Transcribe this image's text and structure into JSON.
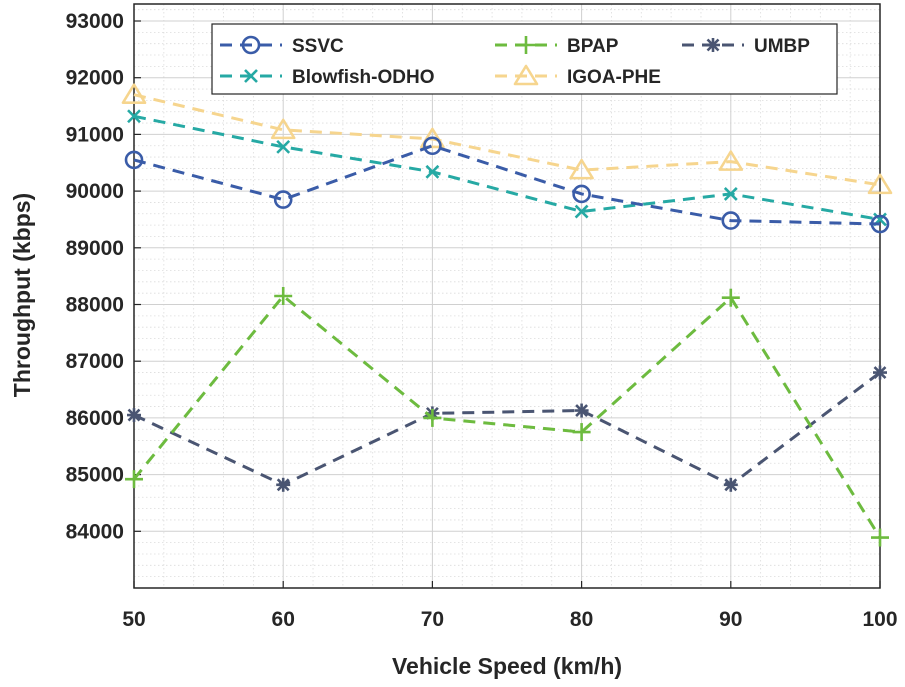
{
  "chart_data": {
    "type": "line",
    "title": "",
    "xlabel": "Vehicle Speed (km/h)",
    "ylabel": "Throughput (kbps)",
    "x": [
      50,
      60,
      70,
      80,
      90,
      100
    ],
    "x_ticks": [
      "50",
      "60",
      "70",
      "80",
      "90",
      "100"
    ],
    "xlim": [
      50,
      100
    ],
    "ylim": [
      83000,
      93300
    ],
    "y_ticks": [
      "84000",
      "85000",
      "86000",
      "87000",
      "88000",
      "89000",
      "90000",
      "91000",
      "92000",
      "93000"
    ],
    "grid": true,
    "legend_position": "top",
    "series": [
      {
        "name": "SSVC",
        "marker": "circle",
        "color": "#3a5ca8",
        "values": [
          90550,
          89850,
          90800,
          89950,
          89480,
          89420
        ]
      },
      {
        "name": "BPAP",
        "marker": "plus",
        "color": "#6dbb3f",
        "values": [
          84920,
          88150,
          86000,
          85750,
          88120,
          83890
        ]
      },
      {
        "name": "UMBP",
        "marker": "asterisk",
        "color": "#4a5572",
        "values": [
          86050,
          84820,
          86080,
          86130,
          84820,
          86800
        ]
      },
      {
        "name": "Blowfish-ODHO",
        "marker": "x",
        "color": "#26a9a4",
        "values": [
          91320,
          90780,
          90340,
          89640,
          89950,
          89500
        ]
      },
      {
        "name": "IGOA-PHE",
        "marker": "triangle",
        "color": "#f6d58e",
        "values": [
          91700,
          91080,
          90920,
          90370,
          90520,
          90110
        ]
      }
    ]
  }
}
